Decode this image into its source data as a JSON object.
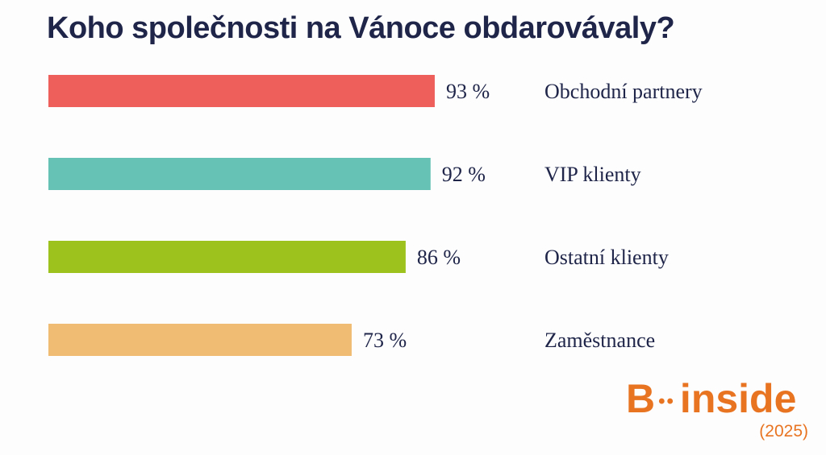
{
  "chart_data": {
    "type": "bar",
    "orientation": "horizontal",
    "title": "Koho společnosti na Vánoce obdarovávaly?",
    "categories": [
      "Obchodní partnery",
      "VIP klienty",
      "Ostatní klienty",
      "Zaměstnance"
    ],
    "values": [
      93,
      92,
      86,
      73
    ],
    "value_labels": [
      "93 %",
      "92 %",
      "86 %",
      "73 %"
    ],
    "colors": [
      "#ee5f5b",
      "#66c2b5",
      "#9dc21d",
      "#f0bb72"
    ],
    "xlim": [
      0,
      100
    ],
    "grid": false,
    "legend": "none"
  },
  "branding": {
    "logo_letter": "B",
    "logo_word": "inside",
    "year": "(2025)"
  }
}
